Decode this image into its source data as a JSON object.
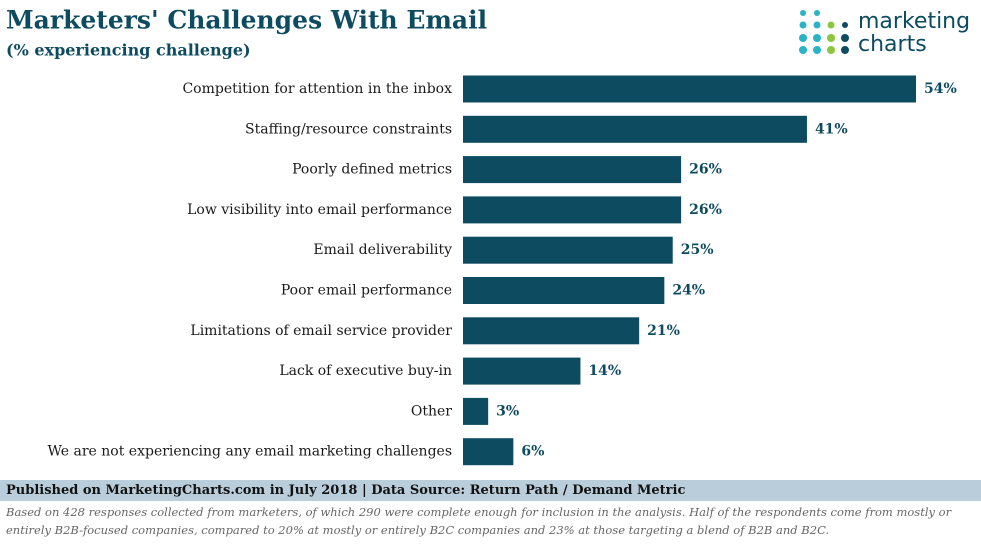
{
  "chart_data": {
    "type": "bar",
    "orientation": "horizontal",
    "title": "Marketers' Challenges With Email",
    "subtitle": "(% experiencing challenge)",
    "categories": [
      "Competition for attention in the inbox",
      "Staffing/resource constraints",
      "Poorly defined metrics",
      "Low visibility into email performance",
      "Email deliverability",
      "Poor email performance",
      "Limitations of email service provider",
      "Lack of executive buy-in",
      "Other",
      "We are not experiencing any email marketing challenges"
    ],
    "values": [
      54,
      41,
      26,
      26,
      25,
      24,
      21,
      14,
      3,
      6
    ],
    "value_labels": [
      "54%",
      "41%",
      "26%",
      "26%",
      "25%",
      "24%",
      "21%",
      "14%",
      "3%",
      "6%"
    ],
    "color": "#0d4b61",
    "source": "Published on MarketingCharts.com in July 2018 | Data Source: Return Path / Demand Metric",
    "note": "Based on 428 responses collected from marketers, of which 290 were complete enough for inclusion in the analysis. Half of the respondents come from mostly or entirely B2B-focused companies, compared to 20% at mostly or entirely B2C companies and 23% at those targeting a blend of B2B and B2C."
  },
  "logo": {
    "line1": "marketing",
    "line2": "charts"
  }
}
